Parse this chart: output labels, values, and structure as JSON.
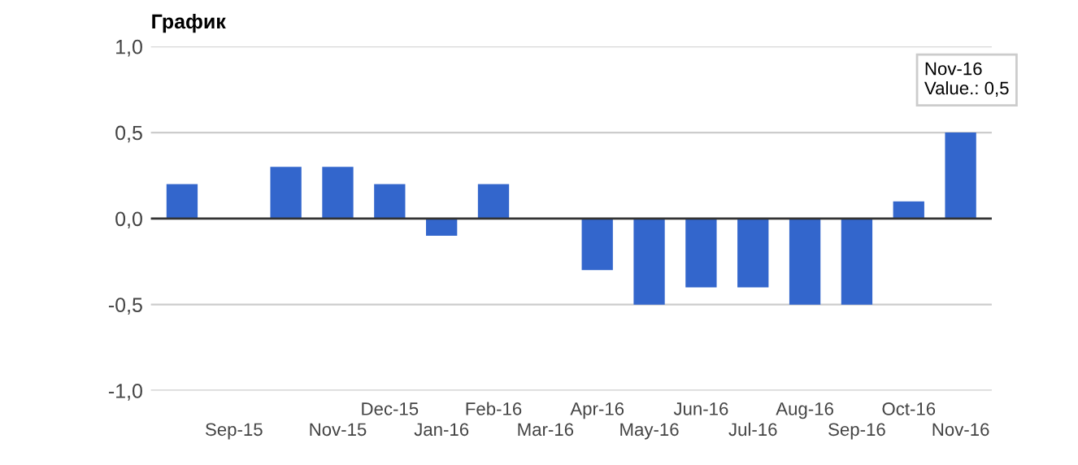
{
  "chart_data": {
    "type": "bar",
    "title": "График",
    "categories": [
      null,
      "Sep-15",
      null,
      "Nov-15",
      "Dec-15",
      "Jan-16",
      "Feb-16",
      "Mar-16",
      "Apr-16",
      "May-16",
      "Jun-16",
      "Jul-16",
      "Aug-16",
      "Sep-16",
      "Oct-16",
      "Nov-16"
    ],
    "values": [
      0.2,
      0,
      0.3,
      0.3,
      0.2,
      -0.1,
      0.2,
      0,
      -0.3,
      -0.5,
      -0.4,
      -0.4,
      -0.5,
      -0.5,
      0.1,
      0.5
    ],
    "color": "#3366cc",
    "ylim": [
      -1,
      1
    ],
    "yticks": [
      {
        "value": -1,
        "label": "-1,0"
      },
      {
        "value": -0.5,
        "label": "-0,5"
      },
      {
        "value": 0,
        "label": "0,0"
      },
      {
        "value": 0.5,
        "label": "0,5"
      },
      {
        "value": 1,
        "label": "1,0"
      }
    ],
    "grid": "y",
    "annotations": [
      {
        "text": "Nov-16\nValue.: 0,5",
        "x": "Nov-16",
        "y": 0.5
      }
    ]
  }
}
